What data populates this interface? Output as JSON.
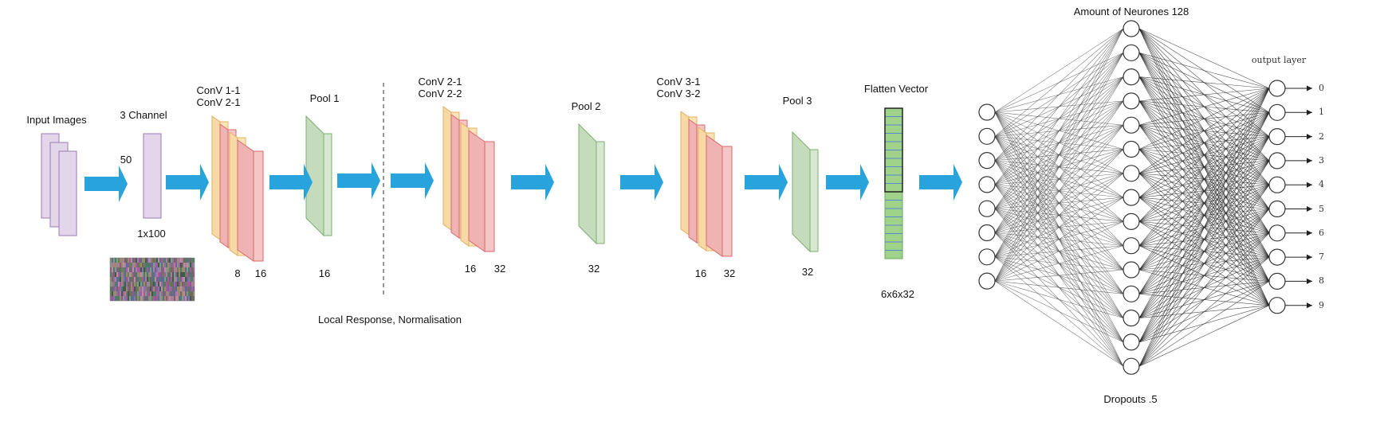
{
  "labels": {
    "input_images": "Input Images",
    "three_channel": "3 Channel",
    "dim_50": "50",
    "dim_1x100": "1x100",
    "conv1_a": "ConV 1-1",
    "conv1_b": "ConV 2-1",
    "c1_8": "8",
    "c1_16": "16",
    "pool1": "Pool 1",
    "p1_16": "16",
    "conv2_a": "ConV 2-1",
    "conv2_b": "ConV 2-2",
    "c2_16": "16",
    "c2_32": "32",
    "pool2": "Pool 2",
    "p2_32": "32",
    "conv3_a": "ConV 3-1",
    "conv3_b": "ConV 3-2",
    "c3_16": "16",
    "c3_32": "32",
    "pool3": "Pool 3",
    "p3_32": "32",
    "flatten": "Flatten Vector",
    "flatten_dim": "6x6x32",
    "lrn": "Local Response, Normalisation",
    "neurons": "Amount of Neurones 128",
    "dropouts": "Dropouts .5",
    "output_layer": "output layer"
  },
  "outputs": [
    "0",
    "1",
    "2",
    "3",
    "4",
    "5",
    "6",
    "7",
    "8",
    "9"
  ],
  "network": {
    "input_nodes": 8,
    "hidden_nodes": 15,
    "output_nodes": 10
  },
  "colors": {
    "arrow": "#29a3dc",
    "purple_fill": "#e3d6ea",
    "purple_stroke": "#9b7bb0",
    "orange_fill": "#fbe3b8",
    "orange_stroke": "#e0b060",
    "red_fill": "#f4c6c6",
    "red_stroke": "#d86a6a",
    "green_fill": "#d6e8d0",
    "green_side": "#b8d3ae",
    "green_stroke": "#7fae72",
    "flatten_fill": "#9fd38a",
    "flatten_cell": "#5b86c9"
  }
}
